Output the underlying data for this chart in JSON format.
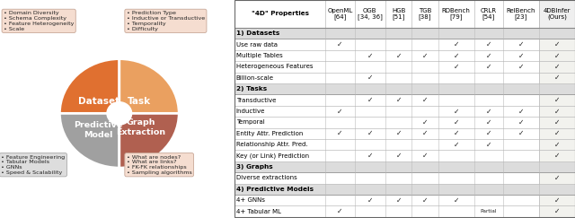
{
  "fig_width": 6.4,
  "fig_height": 2.43,
  "dpi": 100,
  "diagram": {
    "dataset_color": "#E07030",
    "task_color": "#EAA060",
    "pred_model_color": "#A0A0A0",
    "graph_ext_color": "#B06050",
    "box_color_warm": "#F5DDD0",
    "box_color_gray": "#DDDDDD",
    "dataset_label": "Dataset",
    "task_label": "Task",
    "pred_model_label": "Predictive\nModel",
    "graph_ext_label": "Graph\nExtraction",
    "dataset_bullets": [
      "Domain Diversity",
      "Schema Complexity",
      "Feature Heterogeneity",
      "Scale"
    ],
    "task_bullets": [
      "Prediction Type",
      "Inductive or Transductive",
      "Temporality",
      "Difficulty"
    ],
    "pred_model_bullets": [
      "Feature Engineering",
      "Tabular Models",
      "GNNs",
      "Speed & Scalability"
    ],
    "graph_ext_bullets": [
      "What are nodes?",
      "What are links?",
      "FK-FK relationships",
      "Sampling algorithms"
    ]
  },
  "table": {
    "col_headers": [
      "\"4D\" Properties",
      "OpenML\n[64]",
      "OGB\n[34, 36]",
      "HGB\n[51]",
      "TGB\n[38]",
      "RDBench\n[79]",
      "CRLR\n[54]",
      "RelBench\n[23]",
      "4DBInfer\n(Ours)"
    ],
    "rows": [
      {
        "label": "1) Datasets",
        "is_section": true,
        "checks": [
          "",
          "",
          "",
          "",
          "",
          "",
          "",
          ""
        ]
      },
      {
        "label": "Use raw data",
        "is_section": false,
        "checks": [
          "c",
          "",
          "",
          "",
          "c",
          "c",
          "c",
          "c"
        ]
      },
      {
        "label": "Multiple Tables",
        "is_section": false,
        "checks": [
          "",
          "c",
          "c",
          "c",
          "c",
          "c",
          "c",
          "c"
        ]
      },
      {
        "label": "Heterogeneous Features",
        "is_section": false,
        "checks": [
          "",
          "",
          "",
          "",
          "c",
          "c",
          "c",
          "c"
        ]
      },
      {
        "label": "Billion-scale",
        "is_section": false,
        "checks": [
          "",
          "c",
          "",
          "",
          "",
          "",
          "",
          "c"
        ]
      },
      {
        "label": "2) Tasks",
        "is_section": true,
        "checks": [
          "",
          "",
          "",
          "",
          "",
          "",
          "",
          ""
        ]
      },
      {
        "label": "Transductive",
        "is_section": false,
        "checks": [
          "",
          "c",
          "c",
          "c",
          "",
          "",
          "",
          "c"
        ]
      },
      {
        "label": "Inductive",
        "is_section": false,
        "checks": [
          "c",
          "",
          "",
          "",
          "c",
          "c",
          "c",
          "c"
        ]
      },
      {
        "label": "Temporal",
        "is_section": false,
        "checks": [
          "",
          "",
          "",
          "c",
          "c",
          "c",
          "c",
          "c"
        ]
      },
      {
        "label": "Entity Attr. Prediction",
        "is_section": false,
        "checks": [
          "c",
          "c",
          "c",
          "c",
          "c",
          "c",
          "c",
          "c"
        ]
      },
      {
        "label": "Relationship Attr. Pred.",
        "is_section": false,
        "checks": [
          "",
          "",
          "",
          "",
          "c",
          "c",
          "",
          "c"
        ]
      },
      {
        "label": "Key (or Link) Prediction",
        "is_section": false,
        "checks": [
          "",
          "c",
          "c",
          "c",
          "",
          "",
          "",
          "c"
        ]
      },
      {
        "label": "3) Graphs",
        "is_section": true,
        "checks": [
          "",
          "",
          "",
          "",
          "",
          "",
          "",
          ""
        ]
      },
      {
        "label": "Diverse extractions",
        "is_section": false,
        "checks": [
          "",
          "",
          "",
          "",
          "",
          "",
          "",
          "c"
        ]
      },
      {
        "label": "4) Predictive Models",
        "is_section": true,
        "checks": [
          "",
          "",
          "",
          "",
          "",
          "",
          "",
          ""
        ]
      },
      {
        "label": "4+ GNNs",
        "is_section": false,
        "checks": [
          "",
          "c",
          "c",
          "c",
          "c",
          "",
          "",
          "c"
        ]
      },
      {
        "label": "4+ Tabular ML",
        "is_section": false,
        "checks": [
          "c",
          "",
          "",
          "",
          "",
          "partial",
          "",
          "c"
        ]
      }
    ],
    "section_bg": "#DCDCDC",
    "data_bg": "#FFFFFF",
    "last_col_bg": "#F2F2EE",
    "border_color": "#BBBBBB",
    "check_color": "#222222",
    "partial_color": "#222222"
  }
}
